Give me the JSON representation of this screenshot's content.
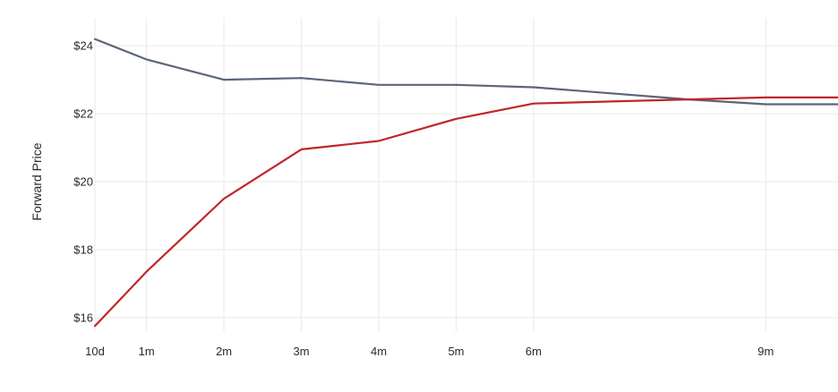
{
  "chart_data": {
    "type": "line",
    "title": "",
    "xlabel": "",
    "ylabel": "Forward Price",
    "x_categories": [
      "10d",
      "1m",
      "2m",
      "3m",
      "4m",
      "5m",
      "6m",
      "9m"
    ],
    "x_tick_positions_days": [
      10,
      30,
      60,
      90,
      120,
      150,
      180,
      270
    ],
    "xlim_days": [
      10,
      298
    ],
    "y_ticks": [
      16,
      18,
      20,
      22,
      24
    ],
    "y_tick_labels": [
      "$16",
      "$18",
      "$20",
      "$22",
      "$24"
    ],
    "ylim": [
      15.6,
      24.4
    ],
    "grid": true,
    "legend": "none",
    "series": [
      {
        "color": "#5b6678",
        "points": [
          {
            "x": 10,
            "y": 24.2
          },
          {
            "x": 30,
            "y": 23.6
          },
          {
            "x": 60,
            "y": 23.0
          },
          {
            "x": 90,
            "y": 23.05
          },
          {
            "x": 120,
            "y": 22.85
          },
          {
            "x": 150,
            "y": 22.85
          },
          {
            "x": 180,
            "y": 22.78
          },
          {
            "x": 240,
            "y": 22.42
          },
          {
            "x": 270,
            "y": 22.28
          },
          {
            "x": 298,
            "y": 22.28
          }
        ]
      },
      {
        "color": "#c0262b",
        "points": [
          {
            "x": 10,
            "y": 15.75
          },
          {
            "x": 30,
            "y": 17.35
          },
          {
            "x": 60,
            "y": 19.5
          },
          {
            "x": 90,
            "y": 20.95
          },
          {
            "x": 120,
            "y": 21.2
          },
          {
            "x": 150,
            "y": 21.85
          },
          {
            "x": 180,
            "y": 22.3
          },
          {
            "x": 240,
            "y": 22.42
          },
          {
            "x": 270,
            "y": 22.48
          },
          {
            "x": 298,
            "y": 22.48
          }
        ]
      }
    ]
  }
}
